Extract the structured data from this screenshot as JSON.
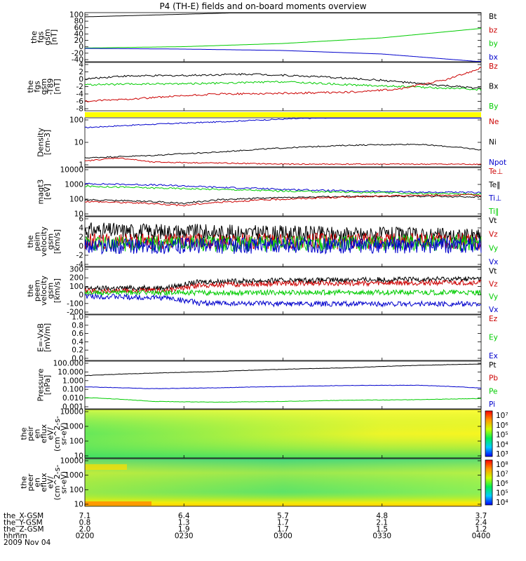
{
  "title": "P4 (TH-E) fields and on-board moments overview",
  "date_label": "2009 Nov 04",
  "colors": {
    "black": "#000000",
    "red": "#cc0000",
    "green": "#00cc00",
    "blue": "#0000cc",
    "yellow": "#ffff00"
  },
  "ephemeris": [
    {
      "name": "the_X-GSM",
      "values": [
        "7.1",
        "6.4",
        "5.7",
        "4.8",
        "3.7"
      ]
    },
    {
      "name": "the_Y-GSM",
      "values": [
        "0.8",
        "1.3",
        "1.7",
        "2.1",
        "2.4"
      ]
    },
    {
      "name": "the_Z-GSM",
      "values": [
        "2.0",
        "1.9",
        "1.7",
        "1.5",
        "1.2"
      ]
    },
    {
      "name": "hhmm",
      "values": [
        "0200",
        "0230",
        "0300",
        "0330",
        "0400"
      ]
    }
  ],
  "chart_data": [
    {
      "type": "line",
      "id": "fgs",
      "ylabel": [
        "the",
        "fgs",
        "gsm",
        "[nT]"
      ],
      "yticks": [
        "100",
        "80",
        "60",
        "40",
        "20",
        "0",
        "-20",
        "-40"
      ],
      "ylim": [
        -40,
        100
      ],
      "legend": [
        {
          "text": "Bt",
          "color": "black"
        },
        {
          "text": "bz",
          "color": "red"
        },
        {
          "text": "by",
          "color": "green"
        },
        {
          "text": "bx",
          "color": "blue"
        }
      ],
      "series": [
        {
          "name": "Bt",
          "color": "black",
          "x": [
            0,
            60,
            120
          ],
          "y": [
            88,
            103,
            118
          ]
        },
        {
          "name": "by",
          "color": "green",
          "x": [
            0,
            30,
            60,
            90,
            120
          ],
          "y": [
            -1,
            3,
            12,
            28,
            55
          ]
        },
        {
          "name": "bx",
          "color": "blue",
          "x": [
            0,
            30,
            60,
            90,
            120
          ],
          "y": [
            -2,
            -4,
            -8,
            -18,
            -40
          ]
        }
      ]
    },
    {
      "type": "line",
      "id": "fgs_dtrend",
      "ylabel": [
        "the",
        "fgs",
        "gsm",
        "-T89",
        "[nT]"
      ],
      "yticks": [
        "4",
        "2",
        "0",
        "-2",
        "-4",
        "-6",
        "-8"
      ],
      "ylim": [
        -9,
        4
      ],
      "legend": [
        {
          "text": "Bz",
          "color": "red"
        },
        {
          "text": "Bx",
          "color": "black"
        },
        {
          "text": "By",
          "color": "green"
        }
      ],
      "series": [
        {
          "name": "Bx",
          "color": "black",
          "x": [
            0,
            10,
            30,
            50,
            70,
            90,
            105,
            120
          ],
          "y": [
            -0.5,
            0.3,
            0.5,
            0.9,
            0.2,
            -0.8,
            -2,
            -3
          ]
        },
        {
          "name": "By",
          "color": "green",
          "x": [
            0,
            20,
            40,
            60,
            80,
            100,
            120
          ],
          "y": [
            -2,
            -1.8,
            -1.6,
            -1.2,
            -2.0,
            -2.6,
            -3.3
          ]
        },
        {
          "name": "Bz",
          "color": "red",
          "x": [
            0,
            20,
            40,
            60,
            80,
            95,
            110,
            120
          ],
          "y": [
            -6.5,
            -5.5,
            -4.5,
            -4.3,
            -4.0,
            -3.2,
            -0.5,
            2.5
          ]
        }
      ]
    },
    {
      "type": "line",
      "id": "density",
      "log": true,
      "ylabel": [
        "Density",
        "[cm-3]"
      ],
      "yticks": [
        "100",
        "10",
        "1"
      ],
      "ylim": [
        0.5,
        200
      ],
      "legend": [
        {
          "text": "Ne",
          "color": "red"
        },
        {
          "text": "Ni",
          "color": "black"
        },
        {
          "text": "Npot",
          "color": "blue"
        }
      ],
      "series": [
        {
          "name": "Npot",
          "color": "blue",
          "x": [
            0,
            40,
            80,
            120
          ],
          "y": [
            60,
            120,
            220,
            400
          ]
        },
        {
          "name": "Ni",
          "color": "black",
          "x": [
            0,
            20,
            40,
            60,
            80,
            100,
            120
          ],
          "y": [
            1.5,
            2.0,
            3.0,
            5.0,
            7.0,
            8.0,
            4.0
          ]
        },
        {
          "name": "Ne",
          "color": "red",
          "x": [
            0,
            10,
            20,
            40,
            60,
            80,
            100,
            120
          ],
          "y": [
            1.0,
            1.5,
            0.9,
            0.8,
            0.7,
            0.7,
            0.7,
            0.7
          ]
        }
      ]
    },
    {
      "type": "line",
      "id": "temperature",
      "log": true,
      "ylabel": [
        "magt3",
        "[eV]"
      ],
      "yticks": [
        "10000",
        "1000",
        "100",
        "10"
      ],
      "ylim": [
        10,
        10000
      ],
      "legend": [
        {
          "text": "Te⊥",
          "color": "red"
        },
        {
          "text": "Te‖",
          "color": "black"
        },
        {
          "text": "Ti⊥",
          "color": "blue"
        },
        {
          "text": "Ti‖",
          "color": "green"
        }
      ],
      "series": [
        {
          "name": "Ti⊥",
          "color": "blue",
          "x": [
            0,
            20,
            40,
            60,
            80,
            100,
            120
          ],
          "y": [
            1000,
            850,
            600,
            450,
            350,
            300,
            280
          ]
        },
        {
          "name": "Ti‖",
          "color": "green",
          "x": [
            0,
            20,
            40,
            60,
            80,
            100,
            120
          ],
          "y": [
            700,
            550,
            450,
            350,
            300,
            250,
            230
          ]
        },
        {
          "name": "Te‖",
          "color": "black",
          "x": [
            0,
            20,
            30,
            40,
            60,
            80,
            100,
            120
          ],
          "y": [
            100,
            80,
            60,
            100,
            140,
            160,
            170,
            150
          ]
        },
        {
          "name": "Te⊥",
          "color": "red",
          "x": [
            0,
            20,
            30,
            40,
            60,
            80,
            100,
            120
          ],
          "y": [
            80,
            60,
            45,
            70,
            110,
            150,
            190,
            200
          ]
        }
      ]
    },
    {
      "type": "line",
      "id": "peim_velocity",
      "ylabel": [
        "the",
        "peim",
        "velocity",
        "gsm",
        "[km/s]"
      ],
      "yticks": [
        "6",
        "4",
        "2",
        "0",
        "-2",
        "-4"
      ],
      "ylim": [
        -5,
        6
      ],
      "legend": [
        {
          "text": "Vt",
          "color": "black"
        },
        {
          "text": "Vz",
          "color": "red"
        },
        {
          "text": "Vy",
          "color": "green"
        },
        {
          "text": "Vx",
          "color": "blue"
        }
      ],
      "series": [
        {
          "name": "Vt",
          "color": "black",
          "x": [
            0,
            120
          ],
          "y": [
            3,
            1.6
          ]
        },
        {
          "name": "Vz",
          "color": "red",
          "x": [
            0,
            120
          ],
          "y": [
            0.5,
            0.6
          ]
        },
        {
          "name": "Vy",
          "color": "green",
          "x": [
            0,
            120
          ],
          "y": [
            0,
            0.2
          ]
        },
        {
          "name": "Vx",
          "color": "blue",
          "x": [
            0,
            120
          ],
          "y": [
            -0.5,
            -0.3
          ]
        }
      ]
    },
    {
      "type": "line",
      "id": "peem_velocity",
      "ylabel": [
        "the",
        "peem",
        "velocity",
        "gsm",
        "[km/s]"
      ],
      "yticks": [
        "300",
        "200",
        "100",
        "0",
        "-100",
        "-200"
      ],
      "ylim": [
        -230,
        320
      ],
      "legend": [
        {
          "text": "Vt",
          "color": "black"
        },
        {
          "text": "Vz",
          "color": "red"
        },
        {
          "text": "Vy",
          "color": "green"
        },
        {
          "text": "Vx",
          "color": "blue"
        }
      ],
      "series": [
        {
          "name": "Vt",
          "color": "black",
          "x": [
            0,
            25,
            35,
            60,
            120
          ],
          "y": [
            70,
            80,
            150,
            165,
            185
          ]
        },
        {
          "name": "Vz",
          "color": "red",
          "x": [
            0,
            25,
            35,
            60,
            120
          ],
          "y": [
            40,
            45,
            110,
            130,
            140
          ]
        },
        {
          "name": "Vy",
          "color": "green",
          "x": [
            0,
            120
          ],
          "y": [
            20,
            25
          ]
        },
        {
          "name": "Vx",
          "color": "blue",
          "x": [
            0,
            25,
            35,
            60,
            120
          ],
          "y": [
            -20,
            -40,
            -100,
            -110,
            -110
          ]
        }
      ]
    },
    {
      "type": "line",
      "id": "e_vxb",
      "ylabel": [
        "E=-VxB",
        "[mV/m]"
      ],
      "yticks": [
        "1.0",
        "0.8",
        "0.6",
        "0.4",
        "0.2",
        "0.0"
      ],
      "ylim": [
        0,
        1
      ],
      "legend": [
        {
          "text": "Ez",
          "color": "red"
        },
        {
          "text": "Ey",
          "color": "green"
        },
        {
          "text": "Ex",
          "color": "blue"
        }
      ],
      "series": []
    },
    {
      "type": "line",
      "id": "pressure",
      "log": true,
      "ylabel": [
        "Pressure",
        "[nPa]"
      ],
      "yticks": [
        "100.000",
        "10.000",
        "1.000",
        "0.100",
        "0.010",
        "0.001"
      ],
      "ylim": [
        0.001,
        100
      ],
      "legend": [
        {
          "text": "Pt",
          "color": "black"
        },
        {
          "text": "Pb",
          "color": "red"
        },
        {
          "text": "Pe",
          "color": "green"
        },
        {
          "text": "Pi",
          "color": "blue"
        }
      ],
      "series": [
        {
          "name": "Pt",
          "color": "black",
          "x": [
            0,
            40,
            80,
            120
          ],
          "y": [
            3,
            8,
            20,
            50
          ]
        },
        {
          "name": "Pi",
          "color": "blue",
          "x": [
            0,
            20,
            40,
            60,
            80,
            100,
            120
          ],
          "y": [
            0.2,
            0.13,
            0.16,
            0.22,
            0.28,
            0.3,
            0.15
          ]
        },
        {
          "name": "Pe",
          "color": "green",
          "x": [
            0,
            20,
            40,
            60,
            80,
            100,
            120
          ],
          "y": [
            0.015,
            0.006,
            0.005,
            0.006,
            0.008,
            0.009,
            0.012
          ]
        }
      ]
    },
    {
      "type": "heatmap",
      "id": "peir_spec",
      "ylabel": [
        "the",
        "peir",
        "en",
        "eflux",
        "eV/",
        "(cm^2-s-",
        "sr-eV)"
      ],
      "yticks": [
        "10000",
        "1000",
        "100",
        "10"
      ],
      "colorbar_ticks": [
        "10⁷",
        "10⁶",
        "10⁵",
        "10⁴",
        "10³"
      ]
    },
    {
      "type": "heatmap",
      "id": "peer_spec",
      "ylabel": [
        "the",
        "peer",
        "en",
        "eflux",
        "eV/",
        "(cm^2-s-",
        "sr-eV)"
      ],
      "yticks": [
        "10000",
        "1000",
        "100",
        "10"
      ],
      "colorbar_ticks": [
        "10⁸",
        "10⁷",
        "10⁶",
        "10⁵",
        "10⁴"
      ]
    }
  ]
}
